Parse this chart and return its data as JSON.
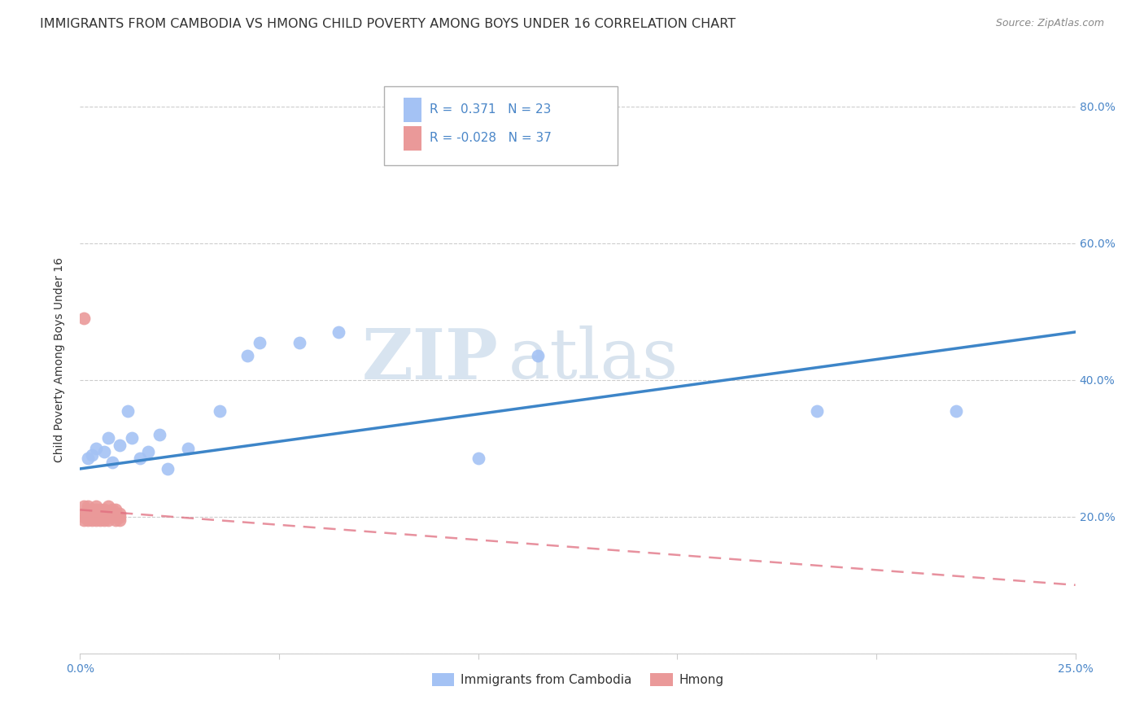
{
  "title": "IMMIGRANTS FROM CAMBODIA VS HMONG CHILD POVERTY AMONG BOYS UNDER 16 CORRELATION CHART",
  "source": "Source: ZipAtlas.com",
  "ylabel": "Child Poverty Among Boys Under 16",
  "xlim": [
    0.0,
    0.25
  ],
  "ylim": [
    0.0,
    0.86
  ],
  "xticks": [
    0.0,
    0.05,
    0.1,
    0.15,
    0.2,
    0.25
  ],
  "xticklabels": [
    "0.0%",
    "",
    "",
    "",
    "",
    "25.0%"
  ],
  "ytick_positions": [
    0.0,
    0.2,
    0.4,
    0.6,
    0.8
  ],
  "yticklabels_right": [
    "",
    "20.0%",
    "40.0%",
    "60.0%",
    "80.0%"
  ],
  "cambodia_color": "#a4c2f4",
  "hmong_color": "#ea9999",
  "cambodia_line_color": "#3d85c8",
  "hmong_line_color": "#e06c7e",
  "r_cambodia": 0.371,
  "n_cambodia": 23,
  "r_hmong": -0.028,
  "n_hmong": 37,
  "background_color": "#ffffff",
  "grid_color": "#cccccc",
  "watermark_zip": "ZIP",
  "watermark_atlas": "atlas",
  "cambodia_x": [
    0.002,
    0.003,
    0.004,
    0.006,
    0.007,
    0.008,
    0.01,
    0.012,
    0.013,
    0.015,
    0.017,
    0.02,
    0.022,
    0.027,
    0.035,
    0.042,
    0.045,
    0.055,
    0.065,
    0.1,
    0.115,
    0.185,
    0.22
  ],
  "cambodia_y": [
    0.285,
    0.29,
    0.3,
    0.295,
    0.315,
    0.28,
    0.305,
    0.355,
    0.315,
    0.285,
    0.295,
    0.32,
    0.27,
    0.3,
    0.355,
    0.435,
    0.455,
    0.455,
    0.47,
    0.285,
    0.435,
    0.355,
    0.355
  ],
  "hmong_x": [
    0.001,
    0.001,
    0.001,
    0.001,
    0.001,
    0.002,
    0.002,
    0.002,
    0.002,
    0.003,
    0.003,
    0.003,
    0.003,
    0.003,
    0.004,
    0.004,
    0.004,
    0.004,
    0.004,
    0.005,
    0.005,
    0.005,
    0.005,
    0.006,
    0.006,
    0.006,
    0.006,
    0.007,
    0.007,
    0.007,
    0.008,
    0.008,
    0.009,
    0.009,
    0.01,
    0.01,
    0.01
  ],
  "hmong_y": [
    0.49,
    0.2,
    0.215,
    0.195,
    0.205,
    0.21,
    0.2,
    0.215,
    0.195,
    0.205,
    0.21,
    0.195,
    0.21,
    0.2,
    0.2,
    0.215,
    0.195,
    0.205,
    0.21,
    0.195,
    0.205,
    0.21,
    0.2,
    0.195,
    0.205,
    0.21,
    0.2,
    0.2,
    0.215,
    0.195,
    0.205,
    0.21,
    0.21,
    0.195,
    0.205,
    0.195,
    0.2
  ],
  "title_fontsize": 11.5,
  "axis_label_fontsize": 10,
  "tick_fontsize": 10,
  "legend_fontsize": 11
}
